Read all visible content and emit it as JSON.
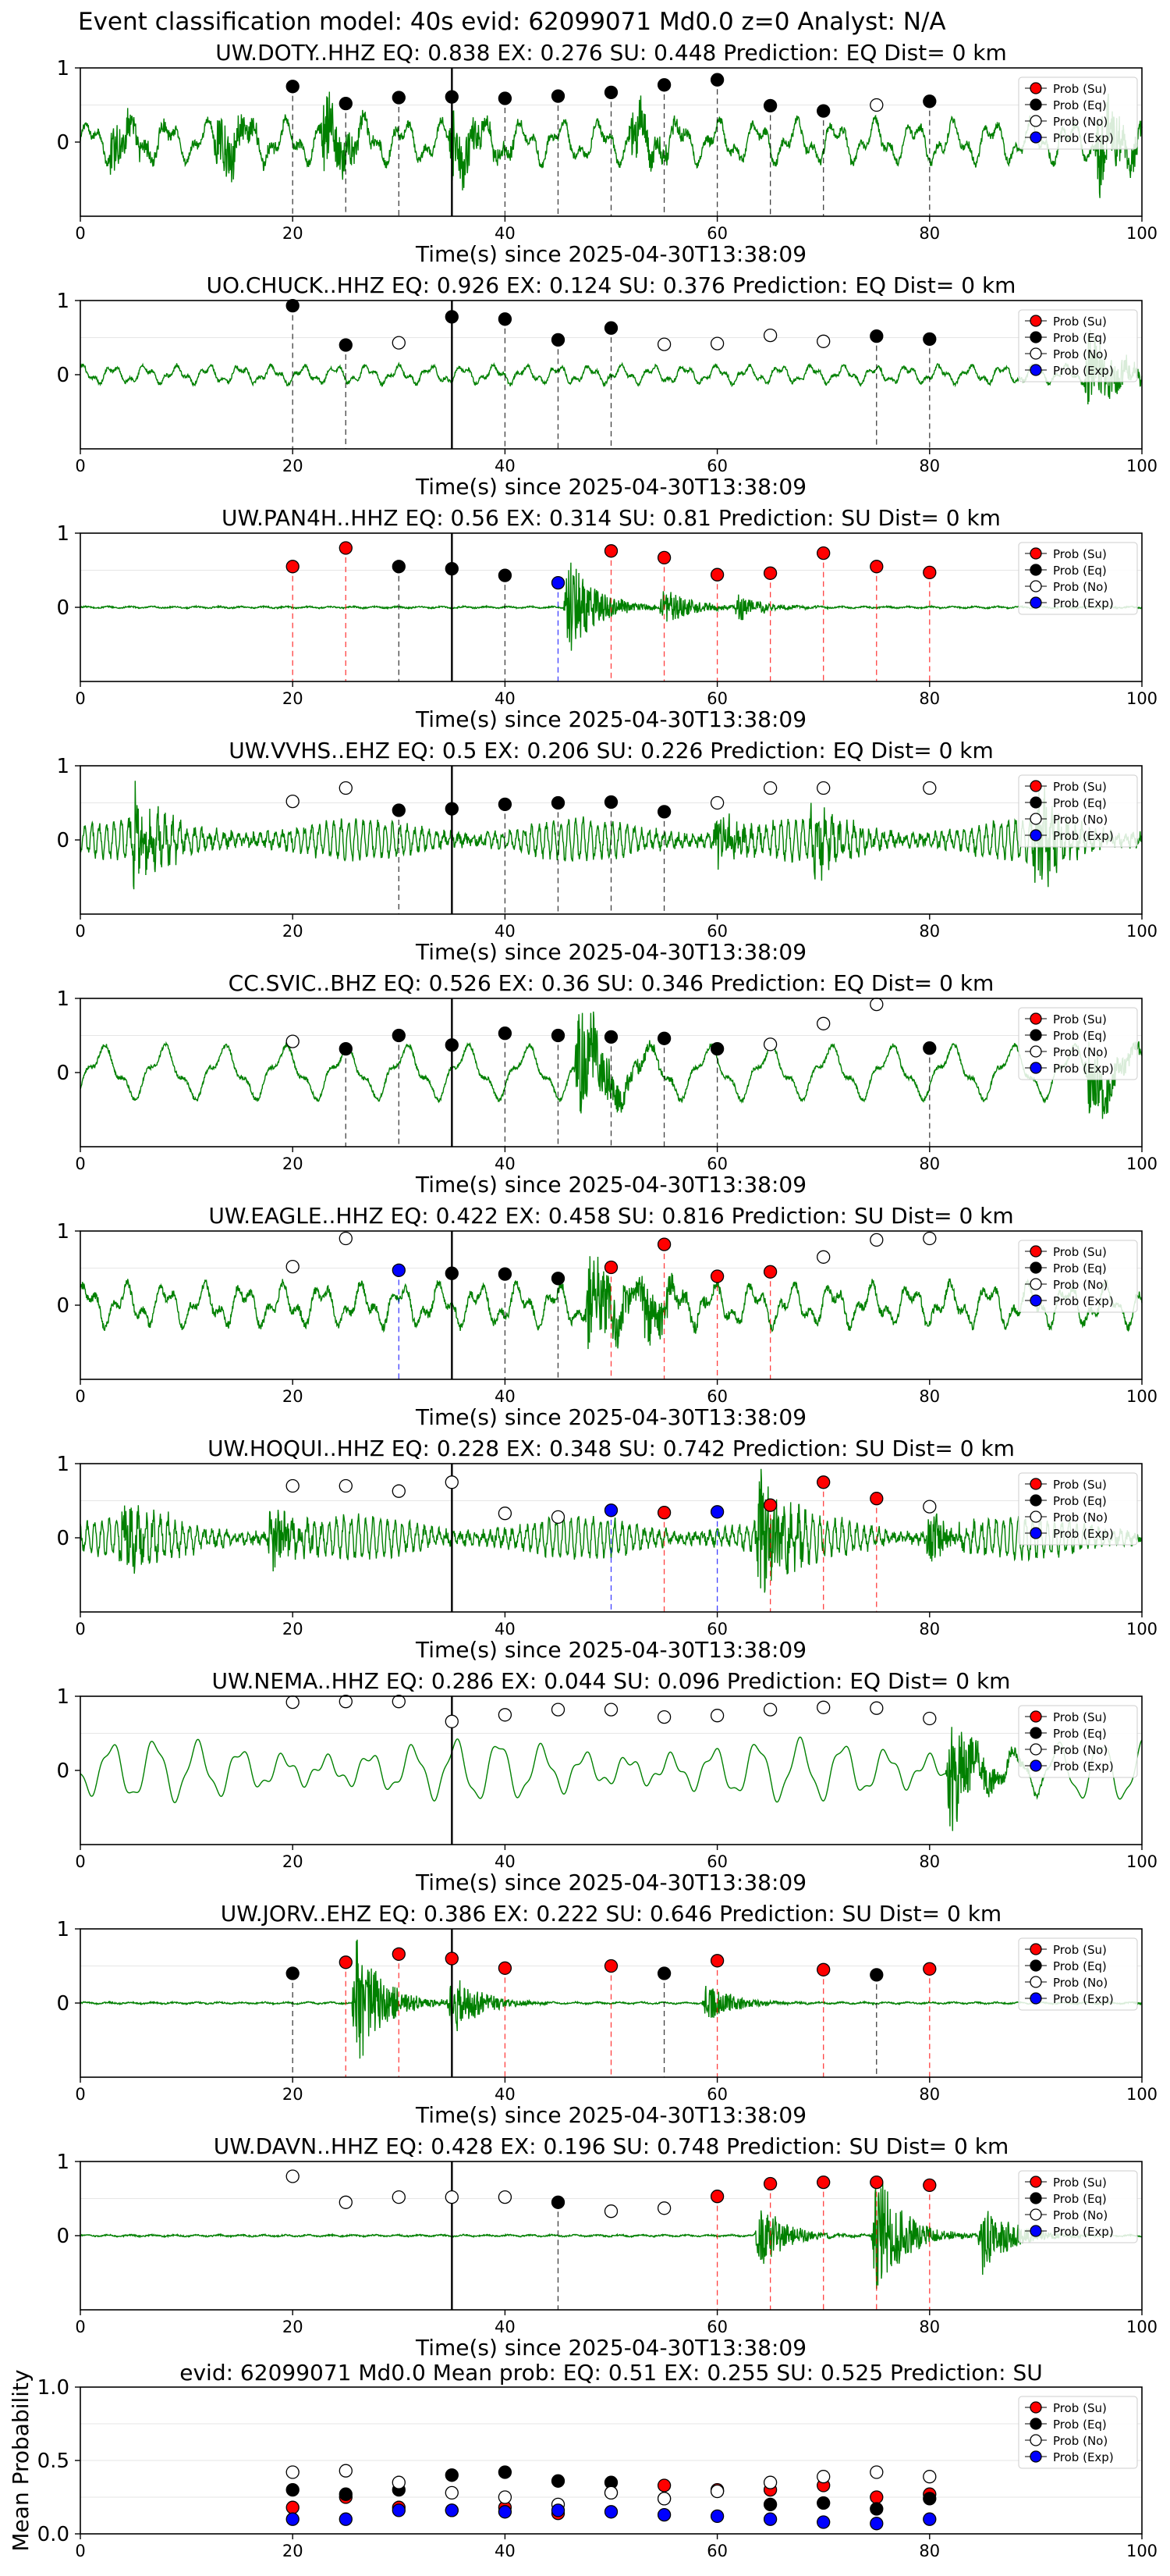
{
  "suptitle": "Event classification model: 40s evid: 62099071 Md0.0 z=0 Analyst: N/A",
  "legend_labels": [
    "Prob (Su)",
    "Prob (Eq)",
    "Prob (No)",
    "Prob (Exp)"
  ],
  "colors": {
    "su": "#ff0000",
    "eq": "#000000",
    "no": "#ffffff",
    "exp": "#0000ff",
    "trace": "#008000",
    "pick": "#000000"
  },
  "chart_data": [
    {
      "type": "line",
      "station": "UW.DOTY..HHZ",
      "title": "UW.DOTY..HHZ   EQ: 0.838  EX: 0.276  SU: 0.448   Prediction: EQ    Dist= 0 km",
      "xlabel": "Time(s) since 2025-04-30T13:38:09",
      "xlim": [
        0,
        100
      ],
      "ylim": [
        -1,
        1
      ],
      "yticks": [
        "1",
        "0"
      ],
      "xticks": [
        "0",
        "20",
        "40",
        "60",
        "80",
        "100"
      ],
      "trace_style": "noisy",
      "events": [
        {
          "t": 3,
          "a": 0.4
        },
        {
          "t": 13,
          "a": 0.5
        },
        {
          "t": 23,
          "a": 0.6
        },
        {
          "t": 35,
          "a": 0.6
        },
        {
          "t": 52,
          "a": 0.5
        },
        {
          "t": 96,
          "a": 0.8
        }
      ],
      "probs": [
        {
          "x": 20,
          "y": 0.75,
          "c": "eq"
        },
        {
          "x": 25,
          "y": 0.52,
          "c": "eq"
        },
        {
          "x": 30,
          "y": 0.6,
          "c": "eq"
        },
        {
          "x": 35,
          "y": 0.61,
          "c": "eq"
        },
        {
          "x": 40,
          "y": 0.59,
          "c": "eq"
        },
        {
          "x": 45,
          "y": 0.62,
          "c": "eq"
        },
        {
          "x": 50,
          "y": 0.67,
          "c": "eq"
        },
        {
          "x": 55,
          "y": 0.77,
          "c": "eq"
        },
        {
          "x": 60,
          "y": 0.84,
          "c": "eq"
        },
        {
          "x": 65,
          "y": 0.49,
          "c": "eq"
        },
        {
          "x": 70,
          "y": 0.42,
          "c": "eq"
        },
        {
          "x": 75,
          "y": 0.5,
          "c": "no"
        },
        {
          "x": 80,
          "y": 0.55,
          "c": "eq"
        }
      ]
    },
    {
      "type": "line",
      "station": "UO.CHUCK..HHZ",
      "title": "UO.CHUCK..HHZ   EQ: 0.926  EX: 0.124  SU: 0.376   Prediction: EQ    Dist= 0 km",
      "xlabel": "Time(s) since 2025-04-30T13:38:09",
      "xlim": [
        0,
        100
      ],
      "ylim": [
        -1,
        1
      ],
      "yticks": [
        "1",
        "0"
      ],
      "xticks": [
        "0",
        "20",
        "40",
        "60",
        "80",
        "100"
      ],
      "trace_style": "quiet",
      "events": [
        {
          "t": 95,
          "a": 0.7
        }
      ],
      "probs": [
        {
          "x": 20,
          "y": 0.93,
          "c": "eq"
        },
        {
          "x": 25,
          "y": 0.4,
          "c": "eq"
        },
        {
          "x": 30,
          "y": 0.43,
          "c": "no"
        },
        {
          "x": 35,
          "y": 0.78,
          "c": "eq"
        },
        {
          "x": 40,
          "y": 0.75,
          "c": "eq"
        },
        {
          "x": 45,
          "y": 0.47,
          "c": "eq"
        },
        {
          "x": 50,
          "y": 0.63,
          "c": "eq"
        },
        {
          "x": 55,
          "y": 0.41,
          "c": "no"
        },
        {
          "x": 60,
          "y": 0.42,
          "c": "no"
        },
        {
          "x": 65,
          "y": 0.53,
          "c": "no"
        },
        {
          "x": 70,
          "y": 0.45,
          "c": "no"
        },
        {
          "x": 75,
          "y": 0.52,
          "c": "eq"
        },
        {
          "x": 80,
          "y": 0.48,
          "c": "eq"
        }
      ]
    },
    {
      "type": "line",
      "station": "UW.PAN4H..HHZ",
      "title": "UW.PAN4H..HHZ   EQ: 0.56  EX: 0.314  SU: 0.81   Prediction: SU    Dist= 0 km",
      "xlabel": "Time(s) since 2025-04-30T13:38:09",
      "xlim": [
        0,
        100
      ],
      "ylim": [
        -1,
        1
      ],
      "yticks": [
        "1",
        "0"
      ],
      "xticks": [
        "0",
        "20",
        "40",
        "60",
        "80",
        "100"
      ],
      "trace_style": "flat",
      "events": [
        {
          "t": 46,
          "a": 0.8
        },
        {
          "t": 55,
          "a": 0.3
        },
        {
          "t": 62,
          "a": 0.2
        }
      ],
      "probs": [
        {
          "x": 20,
          "y": 0.55,
          "c": "su"
        },
        {
          "x": 25,
          "y": 0.8,
          "c": "su"
        },
        {
          "x": 30,
          "y": 0.55,
          "c": "eq"
        },
        {
          "x": 35,
          "y": 0.52,
          "c": "eq"
        },
        {
          "x": 40,
          "y": 0.43,
          "c": "eq"
        },
        {
          "x": 45,
          "y": 0.33,
          "c": "exp"
        },
        {
          "x": 50,
          "y": 0.76,
          "c": "su"
        },
        {
          "x": 55,
          "y": 0.67,
          "c": "su"
        },
        {
          "x": 60,
          "y": 0.44,
          "c": "su"
        },
        {
          "x": 65,
          "y": 0.46,
          "c": "su"
        },
        {
          "x": 70,
          "y": 0.73,
          "c": "su"
        },
        {
          "x": 75,
          "y": 0.55,
          "c": "su"
        },
        {
          "x": 80,
          "y": 0.47,
          "c": "su"
        }
      ]
    },
    {
      "type": "line",
      "station": "UW.VVHS..EHZ",
      "title": "UW.VVHS..EHZ   EQ: 0.5  EX: 0.206  SU: 0.226   Prediction: EQ    Dist= 0 km",
      "xlabel": "Time(s) since 2025-04-30T13:38:09",
      "xlim": [
        0,
        100
      ],
      "ylim": [
        -1,
        1
      ],
      "yticks": [
        "1",
        "0"
      ],
      "xticks": [
        "0",
        "20",
        "40",
        "60",
        "80",
        "100"
      ],
      "trace_style": "dense",
      "events": [
        {
          "t": 5,
          "a": 0.7
        },
        {
          "t": 60,
          "a": 0.4
        },
        {
          "t": 69,
          "a": 0.5
        },
        {
          "t": 90,
          "a": 0.7
        }
      ],
      "probs": [
        {
          "x": 20,
          "y": 0.52,
          "c": "no"
        },
        {
          "x": 25,
          "y": 0.7,
          "c": "no"
        },
        {
          "x": 30,
          "y": 0.4,
          "c": "eq"
        },
        {
          "x": 35,
          "y": 0.42,
          "c": "eq"
        },
        {
          "x": 40,
          "y": 0.48,
          "c": "eq"
        },
        {
          "x": 45,
          "y": 0.5,
          "c": "eq"
        },
        {
          "x": 50,
          "y": 0.51,
          "c": "eq"
        },
        {
          "x": 55,
          "y": 0.38,
          "c": "eq"
        },
        {
          "x": 60,
          "y": 0.5,
          "c": "no"
        },
        {
          "x": 65,
          "y": 0.7,
          "c": "no"
        },
        {
          "x": 70,
          "y": 0.7,
          "c": "no"
        },
        {
          "x": 80,
          "y": 0.7,
          "c": "no"
        }
      ]
    },
    {
      "type": "line",
      "station": "CC.SVIC..BHZ",
      "title": "CC.SVIC..BHZ   EQ: 0.526  EX: 0.36  SU: 0.346   Prediction: EQ    Dist= 0 km",
      "xlabel": "Time(s) since 2025-04-30T13:38:09",
      "xlim": [
        0,
        100
      ],
      "ylim": [
        -1,
        1
      ],
      "yticks": [
        "1",
        "0"
      ],
      "xticks": [
        "0",
        "20",
        "40",
        "60",
        "80",
        "100"
      ],
      "trace_style": "wavy",
      "events": [
        {
          "t": 47,
          "a": 1.0
        },
        {
          "t": 95,
          "a": 0.6
        }
      ],
      "probs": [
        {
          "x": 20,
          "y": 0.42,
          "c": "no"
        },
        {
          "x": 25,
          "y": 0.32,
          "c": "eq"
        },
        {
          "x": 30,
          "y": 0.5,
          "c": "eq"
        },
        {
          "x": 35,
          "y": 0.37,
          "c": "eq"
        },
        {
          "x": 40,
          "y": 0.53,
          "c": "eq"
        },
        {
          "x": 45,
          "y": 0.5,
          "c": "eq"
        },
        {
          "x": 50,
          "y": 0.48,
          "c": "eq"
        },
        {
          "x": 55,
          "y": 0.46,
          "c": "eq"
        },
        {
          "x": 60,
          "y": 0.32,
          "c": "eq"
        },
        {
          "x": 65,
          "y": 0.38,
          "c": "no"
        },
        {
          "x": 70,
          "y": 0.66,
          "c": "no"
        },
        {
          "x": 75,
          "y": 0.92,
          "c": "no"
        },
        {
          "x": 80,
          "y": 0.33,
          "c": "eq"
        }
      ]
    },
    {
      "type": "line",
      "station": "UW.EAGLE..HHZ",
      "title": "UW.EAGLE..HHZ   EQ: 0.422  EX: 0.458  SU: 0.816   Prediction: SU    Dist= 0 km",
      "xlabel": "Time(s) since 2025-04-30T13:38:09",
      "xlim": [
        0,
        100
      ],
      "ylim": [
        -1,
        1
      ],
      "yticks": [
        "1",
        "0"
      ],
      "xticks": [
        "0",
        "20",
        "40",
        "60",
        "80",
        "100"
      ],
      "trace_style": "noisy",
      "events": [
        {
          "t": 48,
          "a": 0.9
        },
        {
          "t": 53,
          "a": 0.5
        }
      ],
      "probs": [
        {
          "x": 20,
          "y": 0.52,
          "c": "no"
        },
        {
          "x": 25,
          "y": 0.9,
          "c": "no"
        },
        {
          "x": 30,
          "y": 0.47,
          "c": "exp"
        },
        {
          "x": 35,
          "y": 0.43,
          "c": "eq"
        },
        {
          "x": 40,
          "y": 0.42,
          "c": "eq"
        },
        {
          "x": 45,
          "y": 0.36,
          "c": "eq"
        },
        {
          "x": 50,
          "y": 0.51,
          "c": "su"
        },
        {
          "x": 55,
          "y": 0.82,
          "c": "su"
        },
        {
          "x": 60,
          "y": 0.39,
          "c": "su"
        },
        {
          "x": 65,
          "y": 0.45,
          "c": "su"
        },
        {
          "x": 70,
          "y": 0.65,
          "c": "no"
        },
        {
          "x": 75,
          "y": 0.88,
          "c": "no"
        },
        {
          "x": 80,
          "y": 0.9,
          "c": "no"
        }
      ]
    },
    {
      "type": "line",
      "station": "UW.HOQUI..HHZ",
      "title": "UW.HOQUI..HHZ   EQ: 0.228  EX: 0.348  SU: 0.742   Prediction: SU    Dist= 0 km",
      "xlabel": "Time(s) since 2025-04-30T13:38:09",
      "xlim": [
        0,
        100
      ],
      "ylim": [
        -1,
        1
      ],
      "yticks": [
        "1",
        "0"
      ],
      "xticks": [
        "0",
        "20",
        "40",
        "60",
        "80",
        "100"
      ],
      "trace_style": "dense",
      "events": [
        {
          "t": 4,
          "a": 0.6
        },
        {
          "t": 18,
          "a": 0.5
        },
        {
          "t": 64,
          "a": 1.0
        },
        {
          "t": 80,
          "a": 0.4
        }
      ],
      "probs": [
        {
          "x": 20,
          "y": 0.7,
          "c": "no"
        },
        {
          "x": 25,
          "y": 0.7,
          "c": "no"
        },
        {
          "x": 30,
          "y": 0.63,
          "c": "no"
        },
        {
          "x": 35,
          "y": 0.75,
          "c": "no"
        },
        {
          "x": 40,
          "y": 0.33,
          "c": "no"
        },
        {
          "x": 45,
          "y": 0.28,
          "c": "no"
        },
        {
          "x": 50,
          "y": 0.37,
          "c": "exp"
        },
        {
          "x": 55,
          "y": 0.34,
          "c": "su"
        },
        {
          "x": 60,
          "y": 0.35,
          "c": "exp"
        },
        {
          "x": 65,
          "y": 0.44,
          "c": "su"
        },
        {
          "x": 70,
          "y": 0.75,
          "c": "su"
        },
        {
          "x": 75,
          "y": 0.53,
          "c": "su"
        },
        {
          "x": 80,
          "y": 0.42,
          "c": "no"
        }
      ]
    },
    {
      "type": "line",
      "station": "UW.NEMA..HHZ",
      "title": "UW.NEMA..HHZ   EQ: 0.286  EX: 0.044  SU: 0.096   Prediction: EQ    Dist= 0 km",
      "xlabel": "Time(s) since 2025-04-30T13:38:09",
      "xlim": [
        0,
        100
      ],
      "ylim": [
        -1,
        1
      ],
      "yticks": [
        "1",
        "0"
      ],
      "xticks": [
        "0",
        "20",
        "40",
        "60",
        "80",
        "100"
      ],
      "trace_style": "smooth",
      "events": [
        {
          "t": 82,
          "a": 0.9
        }
      ],
      "probs": [
        {
          "x": 20,
          "y": 0.92,
          "c": "no"
        },
        {
          "x": 25,
          "y": 0.93,
          "c": "no"
        },
        {
          "x": 30,
          "y": 0.93,
          "c": "no"
        },
        {
          "x": 35,
          "y": 0.66,
          "c": "no"
        },
        {
          "x": 40,
          "y": 0.75,
          "c": "no"
        },
        {
          "x": 45,
          "y": 0.82,
          "c": "no"
        },
        {
          "x": 50,
          "y": 0.82,
          "c": "no"
        },
        {
          "x": 55,
          "y": 0.72,
          "c": "no"
        },
        {
          "x": 60,
          "y": 0.74,
          "c": "no"
        },
        {
          "x": 65,
          "y": 0.82,
          "c": "no"
        },
        {
          "x": 70,
          "y": 0.85,
          "c": "no"
        },
        {
          "x": 75,
          "y": 0.84,
          "c": "no"
        },
        {
          "x": 80,
          "y": 0.7,
          "c": "no"
        }
      ]
    },
    {
      "type": "line",
      "station": "UW.JORV..EHZ",
      "title": "UW.JORV..EHZ   EQ: 0.386  EX: 0.222  SU: 0.646   Prediction: SU    Dist= 0 km",
      "xlabel": "Time(s) since 2025-04-30T13:38:09",
      "xlim": [
        0,
        100
      ],
      "ylim": [
        -1,
        1
      ],
      "yticks": [
        "1",
        "0"
      ],
      "xticks": [
        "0",
        "20",
        "40",
        "60",
        "80",
        "100"
      ],
      "trace_style": "flat",
      "events": [
        {
          "t": 26,
          "a": 1.0
        },
        {
          "t": 35,
          "a": 0.5
        },
        {
          "t": 59,
          "a": 0.3
        }
      ],
      "probs": [
        {
          "x": 20,
          "y": 0.4,
          "c": "eq"
        },
        {
          "x": 25,
          "y": 0.55,
          "c": "su"
        },
        {
          "x": 30,
          "y": 0.66,
          "c": "su"
        },
        {
          "x": 35,
          "y": 0.6,
          "c": "su"
        },
        {
          "x": 40,
          "y": 0.47,
          "c": "su"
        },
        {
          "x": 50,
          "y": 0.5,
          "c": "su"
        },
        {
          "x": 55,
          "y": 0.4,
          "c": "eq"
        },
        {
          "x": 60,
          "y": 0.57,
          "c": "su"
        },
        {
          "x": 70,
          "y": 0.45,
          "c": "su"
        },
        {
          "x": 75,
          "y": 0.38,
          "c": "eq"
        },
        {
          "x": 80,
          "y": 0.46,
          "c": "su"
        }
      ]
    },
    {
      "type": "line",
      "station": "UW.DAVN..HHZ",
      "title": "UW.DAVN..HHZ   EQ: 0.428  EX: 0.196  SU: 0.748   Prediction: SU    Dist= 0 km",
      "xlabel": "Time(s) since 2025-04-30T13:38:09",
      "xlim": [
        0,
        100
      ],
      "ylim": [
        -1,
        1
      ],
      "yticks": [
        "1",
        "0"
      ],
      "xticks": [
        "0",
        "20",
        "40",
        "60",
        "80",
        "100"
      ],
      "trace_style": "flat",
      "events": [
        {
          "t": 75,
          "a": 1.0
        },
        {
          "t": 64,
          "a": 0.5
        },
        {
          "t": 85,
          "a": 0.6
        }
      ],
      "probs": [
        {
          "x": 20,
          "y": 0.8,
          "c": "no"
        },
        {
          "x": 25,
          "y": 0.45,
          "c": "no"
        },
        {
          "x": 30,
          "y": 0.52,
          "c": "no"
        },
        {
          "x": 35,
          "y": 0.52,
          "c": "no"
        },
        {
          "x": 40,
          "y": 0.52,
          "c": "no"
        },
        {
          "x": 45,
          "y": 0.45,
          "c": "eq"
        },
        {
          "x": 50,
          "y": 0.33,
          "c": "no"
        },
        {
          "x": 55,
          "y": 0.37,
          "c": "no"
        },
        {
          "x": 60,
          "y": 0.53,
          "c": "su"
        },
        {
          "x": 65,
          "y": 0.7,
          "c": "su"
        },
        {
          "x": 70,
          "y": 0.72,
          "c": "su"
        },
        {
          "x": 75,
          "y": 0.72,
          "c": "su"
        },
        {
          "x": 80,
          "y": 0.68,
          "c": "su"
        }
      ]
    },
    {
      "type": "scatter",
      "title": "evid: 62099071   Md0.0   Mean prob:   EQ: 0.51  EX: 0.255  SU: 0.525   Prediction: SU",
      "ylabel": "Mean Probability",
      "xlim": [
        0,
        100
      ],
      "ylim": [
        0,
        1
      ],
      "yticks": [
        "1.0",
        "0.5",
        "0.0"
      ],
      "xticks": [
        "0",
        "20",
        "40",
        "60",
        "80",
        "100"
      ],
      "x": [
        20,
        25,
        30,
        35,
        40,
        45,
        50,
        55,
        60,
        65,
        70,
        75,
        80
      ],
      "series": [
        {
          "name": "Prob (Su)",
          "c": "su",
          "values": [
            0.18,
            0.25,
            0.18,
            0.16,
            0.18,
            0.14,
            0.28,
            0.33,
            0.3,
            0.3,
            0.33,
            0.25,
            0.27
          ]
        },
        {
          "name": "Prob (Eq)",
          "c": "eq",
          "values": [
            0.3,
            0.27,
            0.3,
            0.4,
            0.42,
            0.36,
            0.35,
            0.24,
            0.29,
            0.2,
            0.21,
            0.17,
            0.24
          ]
        },
        {
          "name": "Prob (No)",
          "c": "no",
          "values": [
            0.42,
            0.43,
            0.35,
            0.28,
            0.25,
            0.2,
            0.28,
            0.24,
            0.29,
            0.35,
            0.39,
            0.42,
            0.39
          ]
        },
        {
          "name": "Prob (Exp)",
          "c": "exp",
          "values": [
            0.1,
            0.1,
            0.16,
            0.16,
            0.15,
            0.16,
            0.15,
            0.13,
            0.12,
            0.1,
            0.08,
            0.07,
            0.1
          ]
        }
      ]
    }
  ]
}
